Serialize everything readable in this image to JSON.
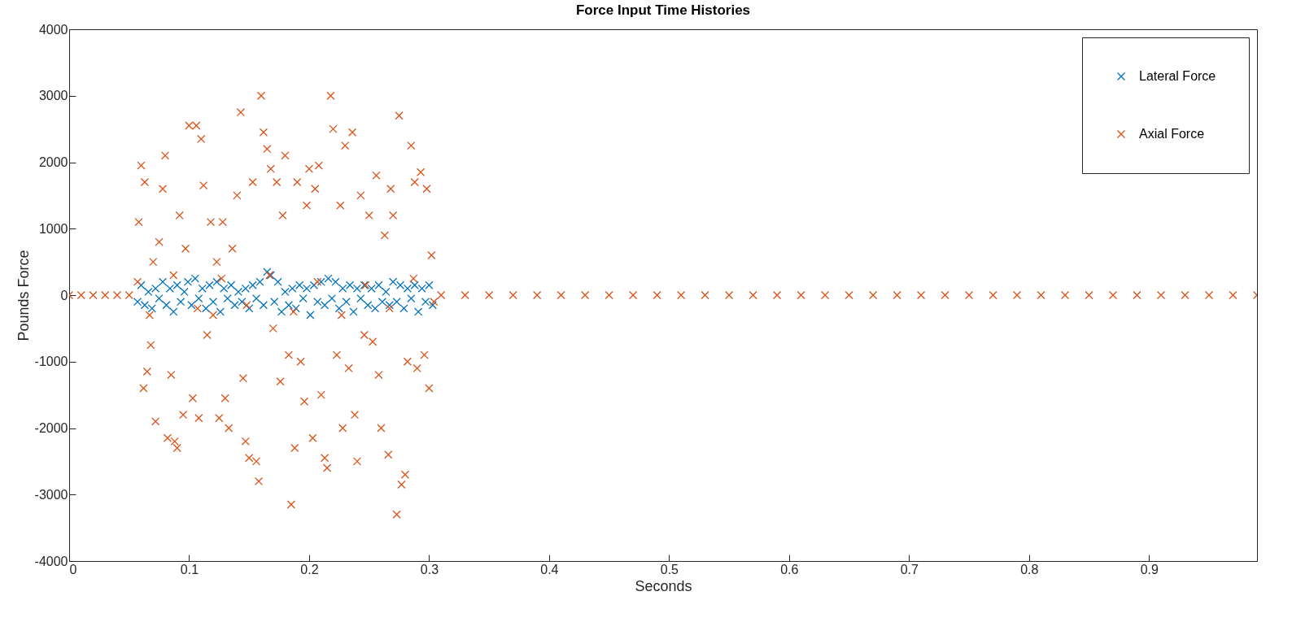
{
  "chart_data": {
    "type": "scatter",
    "title": "Force Input Time Histories",
    "xlabel": "Seconds",
    "ylabel": "Pounds Force",
    "xlim": [
      0,
      0.99
    ],
    "ylim": [
      -4000,
      4000
    ],
    "xticks": [
      0,
      0.1,
      0.2,
      0.3,
      0.4,
      0.5,
      0.6,
      0.7,
      0.8,
      0.9
    ],
    "yticks": [
      -4000,
      -3000,
      -2000,
      -1000,
      0,
      1000,
      2000,
      3000,
      4000
    ],
    "grid": false,
    "legend": "top right",
    "marker": "cross",
    "series": [
      {
        "name": "Lateral Force",
        "color": "#0072bd",
        "x": [
          0.057,
          0.06,
          0.063,
          0.066,
          0.069,
          0.072,
          0.075,
          0.078,
          0.081,
          0.084,
          0.087,
          0.09,
          0.093,
          0.096,
          0.099,
          0.102,
          0.105,
          0.108,
          0.111,
          0.114,
          0.117,
          0.12,
          0.123,
          0.126,
          0.129,
          0.132,
          0.135,
          0.138,
          0.141,
          0.144,
          0.147,
          0.15,
          0.153,
          0.156,
          0.159,
          0.162,
          0.165,
          0.168,
          0.171,
          0.174,
          0.177,
          0.18,
          0.183,
          0.186,
          0.189,
          0.192,
          0.195,
          0.198,
          0.201,
          0.204,
          0.207,
          0.21,
          0.213,
          0.216,
          0.219,
          0.222,
          0.225,
          0.228,
          0.231,
          0.234,
          0.237,
          0.24,
          0.243,
          0.246,
          0.249,
          0.252,
          0.255,
          0.258,
          0.261,
          0.264,
          0.267,
          0.27,
          0.273,
          0.276,
          0.279,
          0.282,
          0.285,
          0.288,
          0.291,
          0.294,
          0.297,
          0.3,
          0.303
        ],
        "values": [
          -100,
          150,
          -150,
          50,
          -200,
          100,
          -50,
          200,
          -150,
          100,
          -250,
          150,
          -100,
          50,
          200,
          -150,
          250,
          -50,
          100,
          -200,
          150,
          -100,
          200,
          -250,
          100,
          -50,
          150,
          -150,
          50,
          -100,
          100,
          -200,
          150,
          -50,
          200,
          -150,
          350,
          300,
          -100,
          200,
          -250,
          50,
          -150,
          100,
          -200,
          150,
          -50,
          100,
          -300,
          150,
          -100,
          200,
          -150,
          250,
          -50,
          200,
          -200,
          100,
          -100,
          150,
          -250,
          100,
          -50,
          150,
          -150,
          100,
          -200,
          150,
          -100,
          50,
          -150,
          200,
          -100,
          150,
          -200,
          100,
          -50,
          150,
          -250,
          100,
          -100,
          150,
          -150
        ]
      },
      {
        "name": "Axial Force",
        "color": "#d95319",
        "x": [
          0,
          0.01,
          0.02,
          0.03,
          0.04,
          0.05,
          0.057,
          0.058,
          0.06,
          0.062,
          0.063,
          0.065,
          0.067,
          0.068,
          0.07,
          0.072,
          0.075,
          0.078,
          0.08,
          0.082,
          0.085,
          0.087,
          0.088,
          0.09,
          0.092,
          0.095,
          0.097,
          0.1,
          0.103,
          0.106,
          0.107,
          0.108,
          0.11,
          0.112,
          0.115,
          0.118,
          0.12,
          0.123,
          0.125,
          0.127,
          0.128,
          0.13,
          0.133,
          0.136,
          0.14,
          0.143,
          0.145,
          0.147,
          0.148,
          0.15,
          0.153,
          0.156,
          0.158,
          0.16,
          0.162,
          0.165,
          0.167,
          0.168,
          0.17,
          0.173,
          0.176,
          0.178,
          0.18,
          0.183,
          0.185,
          0.187,
          0.188,
          0.19,
          0.193,
          0.196,
          0.198,
          0.2,
          0.203,
          0.205,
          0.207,
          0.208,
          0.21,
          0.213,
          0.215,
          0.218,
          0.22,
          0.223,
          0.226,
          0.227,
          0.228,
          0.23,
          0.233,
          0.236,
          0.238,
          0.24,
          0.243,
          0.246,
          0.247,
          0.25,
          0.253,
          0.256,
          0.258,
          0.26,
          0.263,
          0.266,
          0.267,
          0.268,
          0.27,
          0.273,
          0.275,
          0.277,
          0.28,
          0.282,
          0.285,
          0.287,
          0.288,
          0.29,
          0.293,
          0.296,
          0.298,
          0.3,
          0.302,
          0.304,
          0.31,
          0.33,
          0.35,
          0.37,
          0.39,
          0.41,
          0.43,
          0.45,
          0.47,
          0.49,
          0.51,
          0.53,
          0.55,
          0.57,
          0.59,
          0.61,
          0.63,
          0.65,
          0.67,
          0.69,
          0.71,
          0.73,
          0.75,
          0.77,
          0.79,
          0.81,
          0.83,
          0.85,
          0.87,
          0.89,
          0.91,
          0.93,
          0.95,
          0.97,
          0.99
        ],
        "values": [
          0,
          0,
          0,
          0,
          0,
          0,
          200,
          1100,
          1950,
          -1400,
          1700,
          -1150,
          -300,
          -750,
          500,
          -1900,
          800,
          1600,
          2100,
          -2150,
          -1200,
          300,
          -2200,
          -2300,
          1200,
          -1800,
          700,
          2550,
          -1550,
          2550,
          -200,
          -1850,
          2350,
          1650,
          -600,
          1100,
          -300,
          500,
          -1850,
          250,
          1100,
          -1550,
          -2000,
          700,
          1500,
          2750,
          -1250,
          -2200,
          -150,
          -2450,
          1700,
          -2500,
          -2800,
          3000,
          2450,
          2200,
          300,
          1900,
          -500,
          1700,
          -1300,
          1200,
          2100,
          -900,
          -3150,
          -250,
          -2300,
          1700,
          -1000,
          -1600,
          1350,
          1900,
          -2150,
          1600,
          200,
          1950,
          -1500,
          -2450,
          -2600,
          3000,
          2500,
          -900,
          1350,
          -300,
          -2000,
          2250,
          -1100,
          2450,
          -1800,
          -2500,
          1500,
          -600,
          150,
          1200,
          -700,
          1800,
          -1200,
          -2000,
          900,
          -2400,
          -200,
          1600,
          1200,
          -3300,
          2700,
          -2850,
          -2700,
          -1000,
          2250,
          250,
          1700,
          -1100,
          1850,
          -900,
          1600,
          -1400,
          600,
          -100,
          0,
          0,
          0,
          0,
          0,
          0,
          0,
          0,
          0,
          0,
          0,
          0,
          0,
          0,
          0,
          0,
          0,
          0,
          0,
          0,
          0,
          0,
          0,
          0,
          0,
          0,
          0,
          0,
          0,
          0,
          0,
          0,
          0,
          0,
          0
        ]
      }
    ]
  }
}
